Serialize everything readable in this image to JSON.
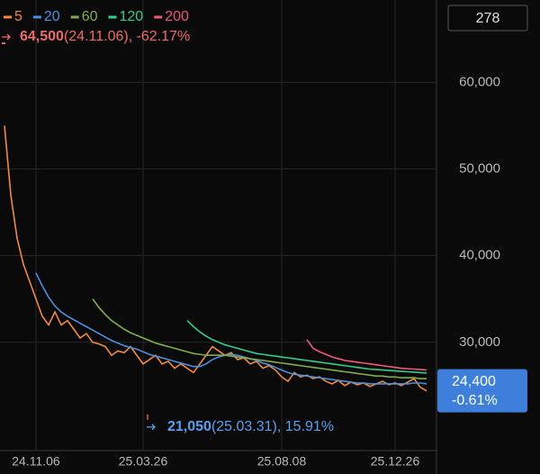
{
  "chart_data": {
    "type": "line",
    "top_badge": "278",
    "high": {
      "value": 64500,
      "label": "64,500",
      "detail": "(24.11.06), -62.17%"
    },
    "low": {
      "value": 21050,
      "label": "21,050",
      "detail": "(25.03.31), 15.91%"
    },
    "current": {
      "value": 24400,
      "label": "24,400",
      "change": "-0.61%"
    },
    "categories": [
      null,
      null,
      null,
      null,
      null,
      "24.11.06",
      null,
      null,
      null,
      null,
      null,
      null,
      null,
      null,
      null,
      null,
      null,
      null,
      null,
      null,
      null,
      null,
      "25.03.26",
      null,
      null,
      null,
      null,
      null,
      null,
      null,
      null,
      null,
      null,
      null,
      null,
      null,
      null,
      null,
      null,
      null,
      null,
      null,
      null,
      null,
      "25.08.08",
      null,
      null,
      null,
      null,
      null,
      null,
      null,
      null,
      null,
      null,
      null,
      null,
      null,
      null,
      null,
      null,
      null,
      "25.12.26",
      null,
      null,
      null,
      null,
      null
    ],
    "ylim": [
      17500,
      69500
    ],
    "yticks": [
      {
        "value": 30000,
        "label": "30,000"
      },
      {
        "value": 40000,
        "label": "40,000"
      },
      {
        "value": 50000,
        "label": "50,000"
      },
      {
        "value": 60000,
        "label": "60,000"
      }
    ],
    "grid": true,
    "series": [
      {
        "name": "5",
        "color": "#f08a3c",
        "values": [
          55000,
          47000,
          42000,
          39000,
          37000,
          35000,
          33000,
          32000,
          33500,
          32000,
          32500,
          31500,
          30500,
          31000,
          30000,
          29800,
          29500,
          28500,
          29000,
          28800,
          29500,
          28500,
          27500,
          28000,
          28500,
          27500,
          27800,
          27000,
          27500,
          27000,
          26500,
          27500,
          28500,
          29500,
          29000,
          28500,
          28800,
          28000,
          28200,
          27500,
          27800,
          27000,
          27300,
          26800,
          26000,
          25500,
          26500,
          26000,
          26200,
          25800,
          26000,
          25500,
          25200,
          25600,
          25000,
          25400,
          25100,
          25300,
          24900,
          25200,
          25500,
          25100,
          25300,
          25000,
          25400,
          25800,
          24800,
          24400
        ]
      },
      {
        "name": "20",
        "color": "#4a8fe2",
        "values": [
          null,
          null,
          null,
          null,
          null,
          38000,
          36500,
          35200,
          34200,
          33500,
          33000,
          32600,
          32200,
          31800,
          31400,
          31000,
          30600,
          30200,
          29900,
          29600,
          29400,
          29200,
          28900,
          28600,
          28400,
          28200,
          28000,
          27800,
          27600,
          27400,
          27200,
          27200,
          27500,
          28000,
          28300,
          28500,
          28600,
          28500,
          28300,
          28100,
          27900,
          27600,
          27400,
          27100,
          26800,
          26500,
          26300,
          26200,
          26100,
          26000,
          25900,
          25800,
          25700,
          25600,
          25500,
          25400,
          25300,
          25300,
          25200,
          25200,
          25200,
          25200,
          25200,
          25200,
          25200,
          25300,
          25300,
          25200
        ]
      },
      {
        "name": "60",
        "color": "#7fae4c",
        "values": [
          null,
          null,
          null,
          null,
          null,
          null,
          null,
          null,
          null,
          null,
          null,
          null,
          null,
          null,
          35000,
          34000,
          33200,
          32500,
          32000,
          31500,
          31100,
          30800,
          30500,
          30200,
          29900,
          29700,
          29500,
          29300,
          29100,
          28900,
          28700,
          28600,
          28500,
          28500,
          28500,
          28500,
          28400,
          28300,
          28200,
          28100,
          28000,
          27900,
          27800,
          27700,
          27600,
          27500,
          27400,
          27300,
          27200,
          27100,
          27000,
          26900,
          26800,
          26700,
          26600,
          26500,
          26400,
          26300,
          26200,
          26100,
          26100,
          26000,
          26000,
          25900,
          25900,
          25900,
          25800,
          25800
        ]
      },
      {
        "name": "120",
        "color": "#2fcf8e",
        "values": [
          null,
          null,
          null,
          null,
          null,
          null,
          null,
          null,
          null,
          null,
          null,
          null,
          null,
          null,
          null,
          null,
          null,
          null,
          null,
          null,
          null,
          null,
          null,
          null,
          null,
          null,
          null,
          null,
          null,
          32500,
          31800,
          31200,
          30700,
          30300,
          30000,
          29700,
          29500,
          29300,
          29100,
          28900,
          28700,
          28600,
          28500,
          28400,
          28300,
          28200,
          28100,
          28000,
          27900,
          27800,
          27700,
          27600,
          27500,
          27400,
          27300,
          27200,
          27100,
          27000,
          26900,
          26850,
          26800,
          26750,
          26700,
          26650,
          26600,
          26550,
          26500,
          26450
        ]
      },
      {
        "name": "200",
        "color": "#f2587e",
        "values": [
          null,
          null,
          null,
          null,
          null,
          null,
          null,
          null,
          null,
          null,
          null,
          null,
          null,
          null,
          null,
          null,
          null,
          null,
          null,
          null,
          null,
          null,
          null,
          null,
          null,
          null,
          null,
          null,
          null,
          null,
          null,
          null,
          null,
          null,
          null,
          null,
          null,
          null,
          null,
          null,
          null,
          null,
          null,
          null,
          null,
          null,
          null,
          null,
          30300,
          29300,
          28900,
          28600,
          28300,
          28100,
          27900,
          27800,
          27700,
          27600,
          27500,
          27400,
          27300,
          27200,
          27100,
          27000,
          26950,
          26900,
          26850,
          26800
        ]
      }
    ]
  }
}
